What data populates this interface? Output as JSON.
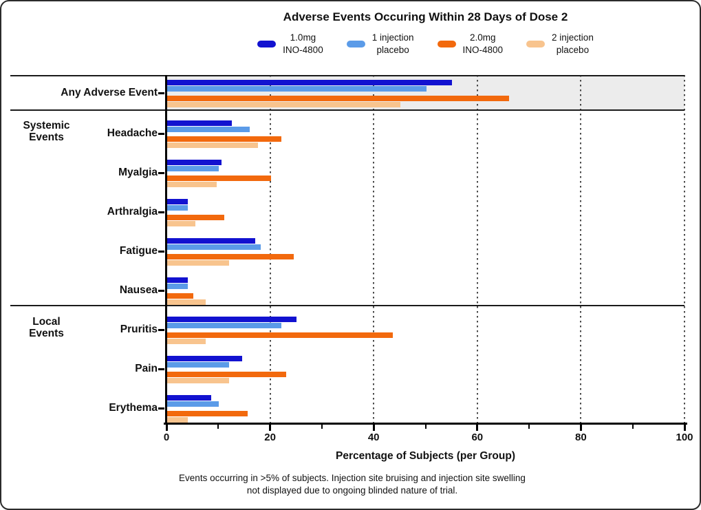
{
  "title": "Adverse Events Occuring Within 28 Days of Dose 2",
  "legend": {
    "items": [
      {
        "label": "1.0mg\nINO-4800",
        "color": "#1212d0"
      },
      {
        "label": "1 injection\nplacebo",
        "color": "#5b9be8"
      },
      {
        "label": "2.0mg\nINO-4800",
        "color": "#f2690d"
      },
      {
        "label": "2 injection\nplacebo",
        "color": "#f8c48e"
      }
    ]
  },
  "chart_data": {
    "type": "bar",
    "orientation": "horizontal",
    "title": "Adverse Events Occuring Within 28 Days of Dose 2",
    "xlabel": "Percentage of Subjects (per Group)",
    "xlim": [
      0,
      100
    ],
    "x_ticks": [
      0,
      20,
      40,
      60,
      80,
      100
    ],
    "x_minor_ticks": [
      10,
      30,
      50,
      70,
      90
    ],
    "gridlines_at": [
      20,
      40,
      60,
      80,
      100
    ],
    "grid_style": "dotted-vertical",
    "legend_position": "top",
    "categories": [
      "Any Adverse Event",
      "Headache",
      "Myalgia",
      "Arthralgia",
      "Fatigue",
      "Nausea",
      "Pruritis",
      "Pain",
      "Erythema"
    ],
    "highlighted_category": "Any Adverse Event",
    "sections": [
      {
        "label": "Systemic\nEvents",
        "first_row": 1,
        "last_row": 5
      },
      {
        "label": "Local\nEvents",
        "first_row": 6,
        "last_row": 8
      }
    ],
    "series": [
      {
        "name": "1.0mg INO-4800",
        "color": "#1212d0",
        "values": [
          55,
          12.5,
          10.5,
          4,
          17,
          4,
          25,
          14.5,
          8.5
        ]
      },
      {
        "name": "1 injection placebo",
        "color": "#5b9be8",
        "values": [
          50,
          16,
          10,
          4,
          18,
          4,
          22,
          12,
          10
        ]
      },
      {
        "name": "2.0mg INO-4800",
        "color": "#f2690d",
        "values": [
          66,
          22,
          20,
          11,
          24.5,
          5,
          43.5,
          23,
          15.5
        ]
      },
      {
        "name": "2 injection placebo",
        "color": "#f8c48e",
        "values": [
          45,
          17.5,
          9.5,
          5.5,
          12,
          7.5,
          7.5,
          12,
          4
        ]
      }
    ]
  },
  "footnote": "Events occurring in >5% of subjects. Injection site bruising and injection site swelling\nnot displayed due to ongoing blinded nature of trial."
}
